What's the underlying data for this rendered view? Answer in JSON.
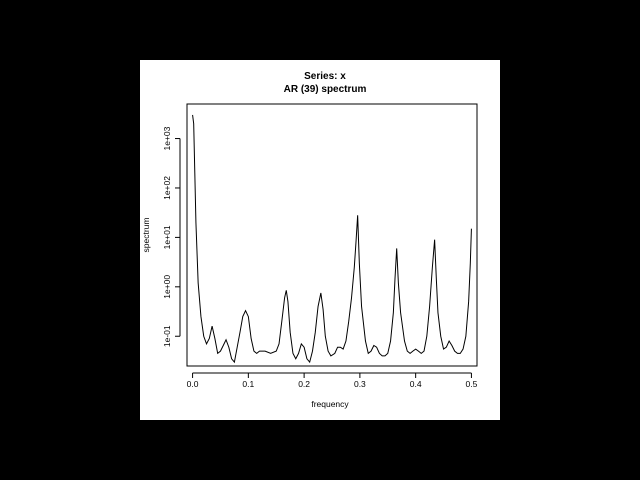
{
  "chart_data": {
    "type": "line",
    "title": "Series: x",
    "subtitle": "AR (39) spectrum",
    "xlabel": "frequency",
    "ylabel": "spectrum",
    "x_scale": "linear",
    "y_scale": "log",
    "xlim": [
      -0.01,
      0.51
    ],
    "ylim": [
      0.025,
      5000
    ],
    "x_ticks": [
      0.0,
      0.1,
      0.2,
      0.3,
      0.4,
      0.5
    ],
    "x_tick_labels": [
      "0.0",
      "0.1",
      "0.2",
      "0.3",
      "0.4",
      "0.5"
    ],
    "y_ticks": [
      0.1,
      1,
      10,
      100,
      1000
    ],
    "y_tick_labels": [
      "1e-01",
      "1e+00",
      "1e+01",
      "1e+02",
      "1e+03"
    ],
    "grid": false,
    "legend": "none",
    "line_color": "#000000",
    "series": [
      {
        "x": [
          0.0,
          0.002,
          0.004,
          0.006,
          0.01,
          0.015,
          0.02,
          0.025,
          0.03,
          0.035,
          0.04,
          0.045,
          0.05,
          0.055,
          0.06,
          0.065,
          0.07,
          0.075,
          0.08,
          0.085,
          0.09,
          0.095,
          0.1,
          0.105,
          0.11,
          0.115,
          0.12,
          0.13,
          0.14,
          0.15,
          0.155,
          0.16,
          0.165,
          0.168,
          0.171,
          0.175,
          0.18,
          0.185,
          0.19,
          0.195,
          0.2,
          0.205,
          0.21,
          0.215,
          0.22,
          0.225,
          0.23,
          0.234,
          0.238,
          0.243,
          0.248,
          0.255,
          0.26,
          0.265,
          0.27,
          0.275,
          0.28,
          0.285,
          0.29,
          0.293,
          0.296,
          0.299,
          0.303,
          0.31,
          0.315,
          0.32,
          0.325,
          0.33,
          0.335,
          0.34,
          0.345,
          0.35,
          0.355,
          0.36,
          0.363,
          0.366,
          0.369,
          0.373,
          0.38,
          0.385,
          0.39,
          0.395,
          0.4,
          0.405,
          0.41,
          0.415,
          0.42,
          0.425,
          0.43,
          0.434,
          0.437,
          0.44,
          0.445,
          0.45,
          0.455,
          0.46,
          0.465,
          0.47,
          0.475,
          0.48,
          0.485,
          0.49,
          0.495,
          0.498,
          0.5
        ],
        "y": [
          3000,
          2000,
          200,
          20,
          1.2,
          0.25,
          0.1,
          0.07,
          0.09,
          0.16,
          0.09,
          0.045,
          0.05,
          0.065,
          0.085,
          0.06,
          0.035,
          0.03,
          0.06,
          0.12,
          0.25,
          0.33,
          0.25,
          0.09,
          0.05,
          0.045,
          0.05,
          0.05,
          0.045,
          0.05,
          0.07,
          0.2,
          0.6,
          0.85,
          0.5,
          0.12,
          0.045,
          0.035,
          0.045,
          0.07,
          0.06,
          0.035,
          0.03,
          0.05,
          0.12,
          0.4,
          0.75,
          0.35,
          0.1,
          0.05,
          0.04,
          0.045,
          0.06,
          0.06,
          0.055,
          0.08,
          0.2,
          0.6,
          2.5,
          8,
          28,
          3,
          0.4,
          0.08,
          0.045,
          0.05,
          0.065,
          0.06,
          0.045,
          0.04,
          0.04,
          0.045,
          0.08,
          0.3,
          1.5,
          6,
          1.2,
          0.3,
          0.08,
          0.05,
          0.045,
          0.05,
          0.055,
          0.05,
          0.045,
          0.05,
          0.1,
          0.4,
          2.5,
          9,
          1.5,
          0.3,
          0.1,
          0.055,
          0.06,
          0.08,
          0.065,
          0.05,
          0.045,
          0.045,
          0.055,
          0.1,
          0.5,
          3,
          15
        ]
      }
    ]
  }
}
